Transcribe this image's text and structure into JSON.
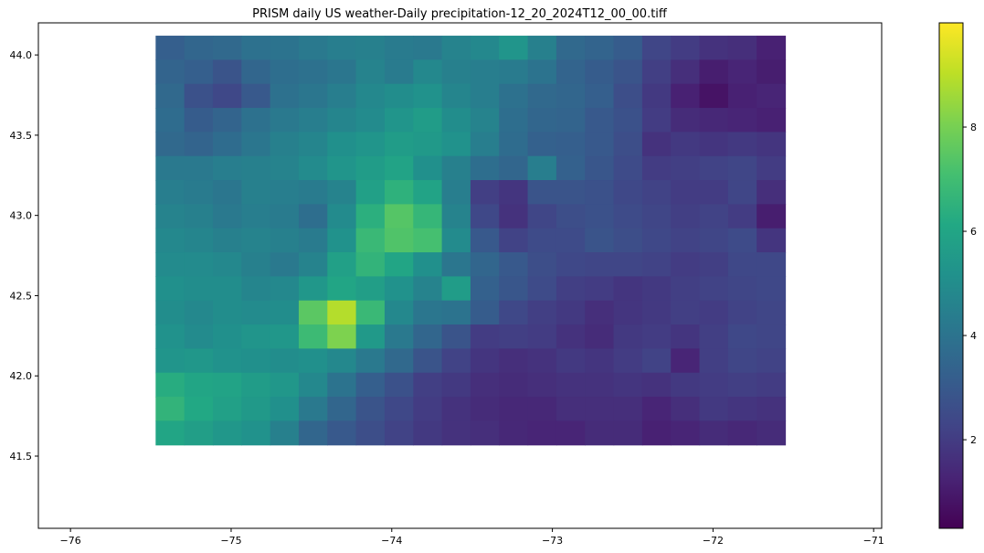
{
  "chart_data": {
    "type": "heatmap",
    "title": "PRISM daily US weather-Daily precipitation-12_20_2024T12_00_00.tiff",
    "xlabel": "",
    "ylabel": "",
    "xlim": [
      -76.2,
      -70.95
    ],
    "ylim": [
      41.05,
      44.2
    ],
    "xticks": [
      {
        "value": -76,
        "label": "−76"
      },
      {
        "value": -75,
        "label": "−75"
      },
      {
        "value": -74,
        "label": "−74"
      },
      {
        "value": -73,
        "label": "−73"
      },
      {
        "value": -72,
        "label": "−72"
      },
      {
        "value": -71,
        "label": "−71"
      }
    ],
    "yticks": [
      {
        "value": 41.5,
        "label": "41.5"
      },
      {
        "value": 42.0,
        "label": "42.0"
      },
      {
        "value": 42.5,
        "label": "42.5"
      },
      {
        "value": 43.0,
        "label": "43.0"
      },
      {
        "value": 43.5,
        "label": "43.5"
      },
      {
        "value": 44.0,
        "label": "44.0"
      }
    ],
    "extent": {
      "lon_min": -75.47,
      "lon_max": -71.55,
      "lat_min": 41.57,
      "lat_max": 44.12
    },
    "colormap": "viridis",
    "colorbar": {
      "vmin": 0.3,
      "vmax": 10.0,
      "ticks": [
        {
          "value": 2,
          "label": "2"
        },
        {
          "value": 4,
          "label": "4"
        },
        {
          "value": 6,
          "label": "6"
        },
        {
          "value": 8,
          "label": "8"
        }
      ]
    },
    "grid": false,
    "values": [
      [
        3.2,
        3.5,
        3.6,
        3.9,
        4.0,
        4.2,
        4.4,
        4.5,
        4.3,
        4.2,
        4.6,
        4.8,
        5.3,
        4.5,
        3.6,
        3.4,
        3.1,
        2.3,
        2.0,
        1.7,
        1.6,
        1.2
      ],
      [
        3.4,
        3.2,
        2.8,
        3.5,
        3.8,
        3.9,
        4.1,
        4.6,
        4.3,
        4.8,
        4.5,
        4.4,
        4.3,
        4.0,
        3.4,
        3.1,
        2.8,
        2.1,
        1.6,
        1.1,
        1.3,
        1.1
      ],
      [
        3.6,
        2.7,
        2.4,
        3.0,
        3.9,
        4.1,
        4.4,
        4.8,
        5.0,
        5.2,
        4.7,
        4.4,
        3.9,
        3.6,
        3.5,
        3.2,
        2.6,
        1.9,
        1.2,
        0.8,
        1.2,
        1.3
      ],
      [
        3.7,
        3.1,
        3.4,
        3.9,
        4.2,
        4.4,
        4.7,
        4.9,
        5.3,
        5.6,
        5.0,
        4.6,
        3.8,
        3.5,
        3.4,
        3.0,
        2.7,
        2.0,
        1.5,
        1.4,
        1.3,
        1.2
      ],
      [
        3.6,
        3.4,
        3.7,
        4.1,
        4.5,
        4.7,
        5.1,
        5.3,
        5.6,
        5.5,
        5.2,
        4.4,
        3.7,
        3.3,
        3.2,
        3.0,
        2.6,
        1.7,
        1.9,
        1.8,
        1.9,
        1.8
      ],
      [
        4.2,
        4.2,
        4.4,
        4.5,
        4.6,
        4.9,
        5.3,
        5.6,
        5.9,
        5.1,
        4.5,
        3.8,
        3.5,
        4.4,
        3.3,
        2.9,
        2.5,
        2.0,
        2.1,
        2.2,
        2.3,
        2.0
      ],
      [
        4.4,
        4.3,
        4.1,
        4.5,
        4.4,
        4.3,
        4.6,
        5.8,
        6.5,
        5.9,
        4.4,
        2.1,
        1.8,
        2.8,
        2.8,
        2.7,
        2.4,
        2.2,
        2.0,
        2.0,
        2.3,
        1.6
      ],
      [
        4.6,
        4.5,
        4.2,
        4.4,
        4.3,
        3.8,
        4.9,
        6.4,
        7.4,
        6.7,
        4.6,
        2.4,
        1.7,
        2.3,
        2.6,
        2.7,
        2.5,
        2.3,
        2.1,
        2.2,
        2.0,
        1.1
      ],
      [
        4.8,
        4.7,
        4.5,
        4.6,
        4.5,
        4.3,
        5.2,
        6.8,
        7.3,
        7.1,
        4.9,
        3.0,
        2.2,
        2.5,
        2.5,
        2.8,
        2.6,
        2.4,
        2.2,
        2.3,
        2.5,
        1.8
      ],
      [
        4.9,
        4.9,
        4.8,
        4.5,
        4.2,
        4.6,
        5.8,
        6.6,
        6.0,
        5.1,
        4.1,
        3.5,
        3.0,
        2.6,
        2.4,
        2.3,
        2.3,
        2.2,
        2.0,
        2.1,
        2.4,
        2.4
      ],
      [
        5.1,
        5.0,
        5.0,
        4.7,
        4.8,
        5.4,
        6.0,
        5.7,
        5.2,
        4.6,
        5.6,
        3.3,
        2.9,
        2.5,
        2.1,
        2.0,
        1.8,
        1.9,
        2.1,
        2.2,
        2.3,
        2.4
      ],
      [
        5.0,
        4.8,
        5.0,
        4.9,
        5.0,
        7.5,
        8.9,
        6.8,
        4.8,
        4.1,
        4.0,
        3.1,
        2.4,
        2.1,
        1.9,
        1.6,
        1.8,
        1.9,
        2.1,
        2.0,
        2.2,
        2.3
      ],
      [
        5.2,
        4.9,
        5.1,
        5.3,
        5.4,
        6.9,
        8.1,
        5.5,
        4.2,
        3.5,
        2.8,
        2.0,
        2.1,
        2.0,
        1.7,
        1.5,
        1.9,
        2.0,
        1.8,
        2.1,
        2.4,
        2.3
      ],
      [
        5.3,
        5.4,
        5.2,
        5.1,
        5.0,
        5.1,
        4.8,
        4.2,
        3.6,
        2.8,
        2.2,
        1.8,
        1.6,
        1.7,
        1.9,
        1.8,
        2.0,
        2.2,
        1.3,
        2.1,
        2.3,
        2.2
      ],
      [
        6.3,
        6.0,
        5.9,
        5.6,
        5.4,
        4.8,
        4.0,
        3.2,
        2.7,
        2.1,
        1.9,
        1.6,
        1.5,
        1.6,
        1.7,
        1.7,
        1.8,
        1.7,
        1.9,
        2.0,
        2.1,
        2.0
      ],
      [
        6.6,
        6.1,
        5.8,
        5.5,
        5.1,
        4.2,
        3.5,
        2.8,
        2.4,
        2.0,
        1.7,
        1.5,
        1.4,
        1.4,
        1.6,
        1.6,
        1.6,
        1.3,
        1.6,
        1.9,
        1.8,
        1.7
      ],
      [
        6.0,
        5.7,
        5.4,
        5.2,
        4.5,
        3.5,
        3.0,
        2.6,
        2.2,
        1.9,
        1.7,
        1.6,
        1.4,
        1.3,
        1.3,
        1.5,
        1.5,
        1.2,
        1.3,
        1.5,
        1.4,
        1.5
      ]
    ]
  }
}
